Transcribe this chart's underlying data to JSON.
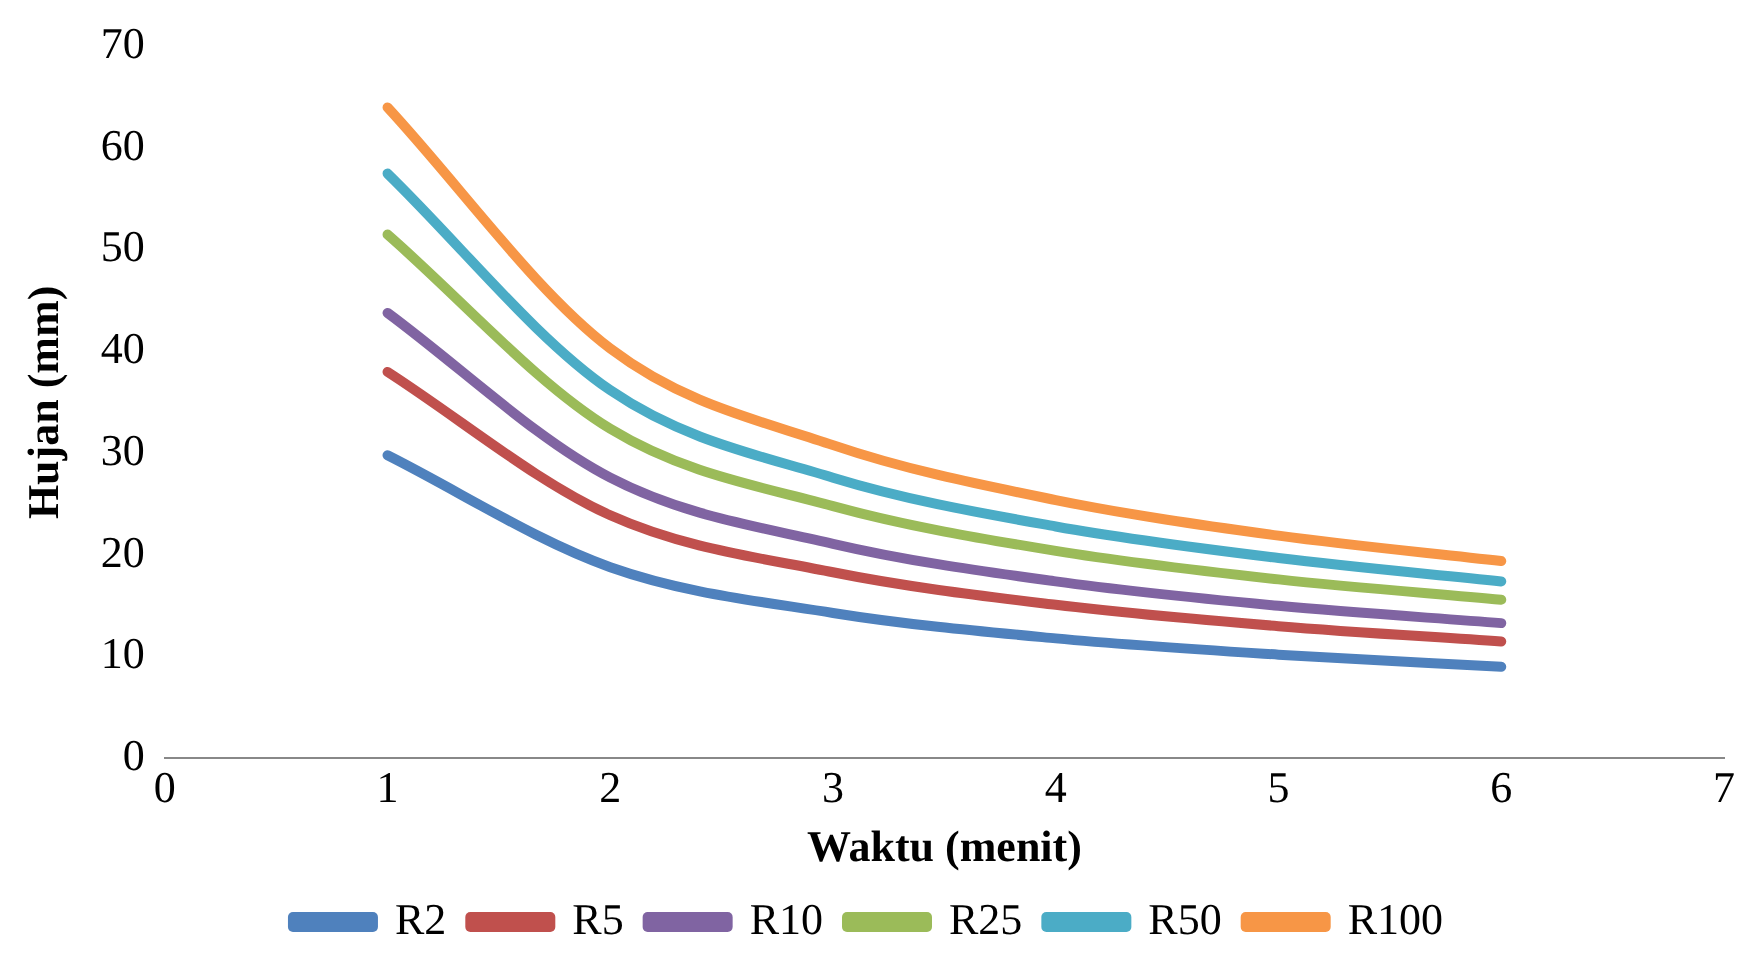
{
  "chart_data": {
    "type": "line",
    "xlabel": "Waktu (menit)",
    "ylabel": "Hujan (mm)",
    "x": [
      1,
      2,
      3,
      4,
      5,
      6
    ],
    "xlim": [
      0,
      7
    ],
    "xticks": [
      0,
      1,
      2,
      3,
      4,
      5,
      6,
      7
    ],
    "ylim": [
      0,
      70
    ],
    "yticks": [
      0,
      10,
      20,
      30,
      40,
      50,
      60,
      70
    ],
    "grid": false,
    "legend": "bottom",
    "marker": "none",
    "line_style": "solid",
    "series": [
      {
        "name": "R2",
        "color": "#4f81bd",
        "values": [
          29.8,
          18.8,
          14.3,
          11.8,
          10.2,
          9.0
        ]
      },
      {
        "name": "R5",
        "color": "#c0504d",
        "values": [
          38.0,
          23.9,
          18.3,
          15.1,
          13.0,
          11.5
        ]
      },
      {
        "name": "R10",
        "color": "#8064a2",
        "values": [
          43.8,
          27.6,
          21.1,
          17.4,
          15.0,
          13.3
        ]
      },
      {
        "name": "R25",
        "color": "#9bbb59",
        "values": [
          51.5,
          32.4,
          24.8,
          20.4,
          17.6,
          15.6
        ]
      },
      {
        "name": "R50",
        "color": "#4bacc6",
        "values": [
          57.5,
          36.2,
          27.6,
          22.8,
          19.7,
          17.4
        ]
      },
      {
        "name": "R100",
        "color": "#f79646",
        "values": [
          64.0,
          40.3,
          30.8,
          25.4,
          21.9,
          19.4
        ]
      }
    ]
  }
}
